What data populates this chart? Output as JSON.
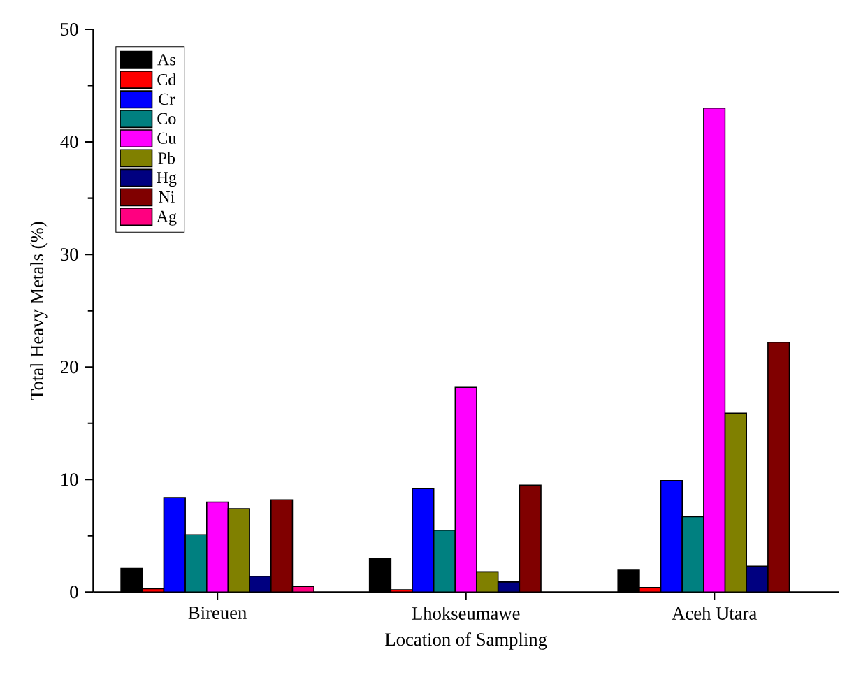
{
  "chart_data": {
    "type": "bar",
    "xlabel": "Location of Sampling",
    "ylabel": "Total Heavy Metals (%)",
    "categories": [
      "Bireuen",
      "Lhokseumawe",
      "Aceh Utara"
    ],
    "series": [
      {
        "name": "As",
        "color": "#000000",
        "values": [
          2.1,
          3.0,
          2.0
        ]
      },
      {
        "name": "Cd",
        "color": "#ff0000",
        "values": [
          0.3,
          0.2,
          0.4
        ]
      },
      {
        "name": "Cr",
        "color": "#0000ff",
        "values": [
          8.4,
          9.2,
          9.9
        ]
      },
      {
        "name": "Co",
        "color": "#008080",
        "values": [
          5.1,
          5.5,
          6.7
        ]
      },
      {
        "name": "Cu",
        "color": "#ff00ff",
        "values": [
          8.0,
          18.2,
          43.0
        ]
      },
      {
        "name": "Pb",
        "color": "#808000",
        "values": [
          7.4,
          1.8,
          15.9
        ]
      },
      {
        "name": "Hg",
        "color": "#000080",
        "values": [
          1.4,
          0.9,
          2.3
        ]
      },
      {
        "name": "Ni",
        "color": "#800000",
        "values": [
          8.2,
          9.5,
          22.2
        ]
      },
      {
        "name": "Ag",
        "color": "#ff0080",
        "values": [
          0.5,
          null,
          null
        ]
      }
    ],
    "ylim": [
      0,
      50
    ],
    "yticks": [
      0,
      10,
      20,
      30,
      40,
      50
    ],
    "legend": "top left",
    "grid": false
  }
}
